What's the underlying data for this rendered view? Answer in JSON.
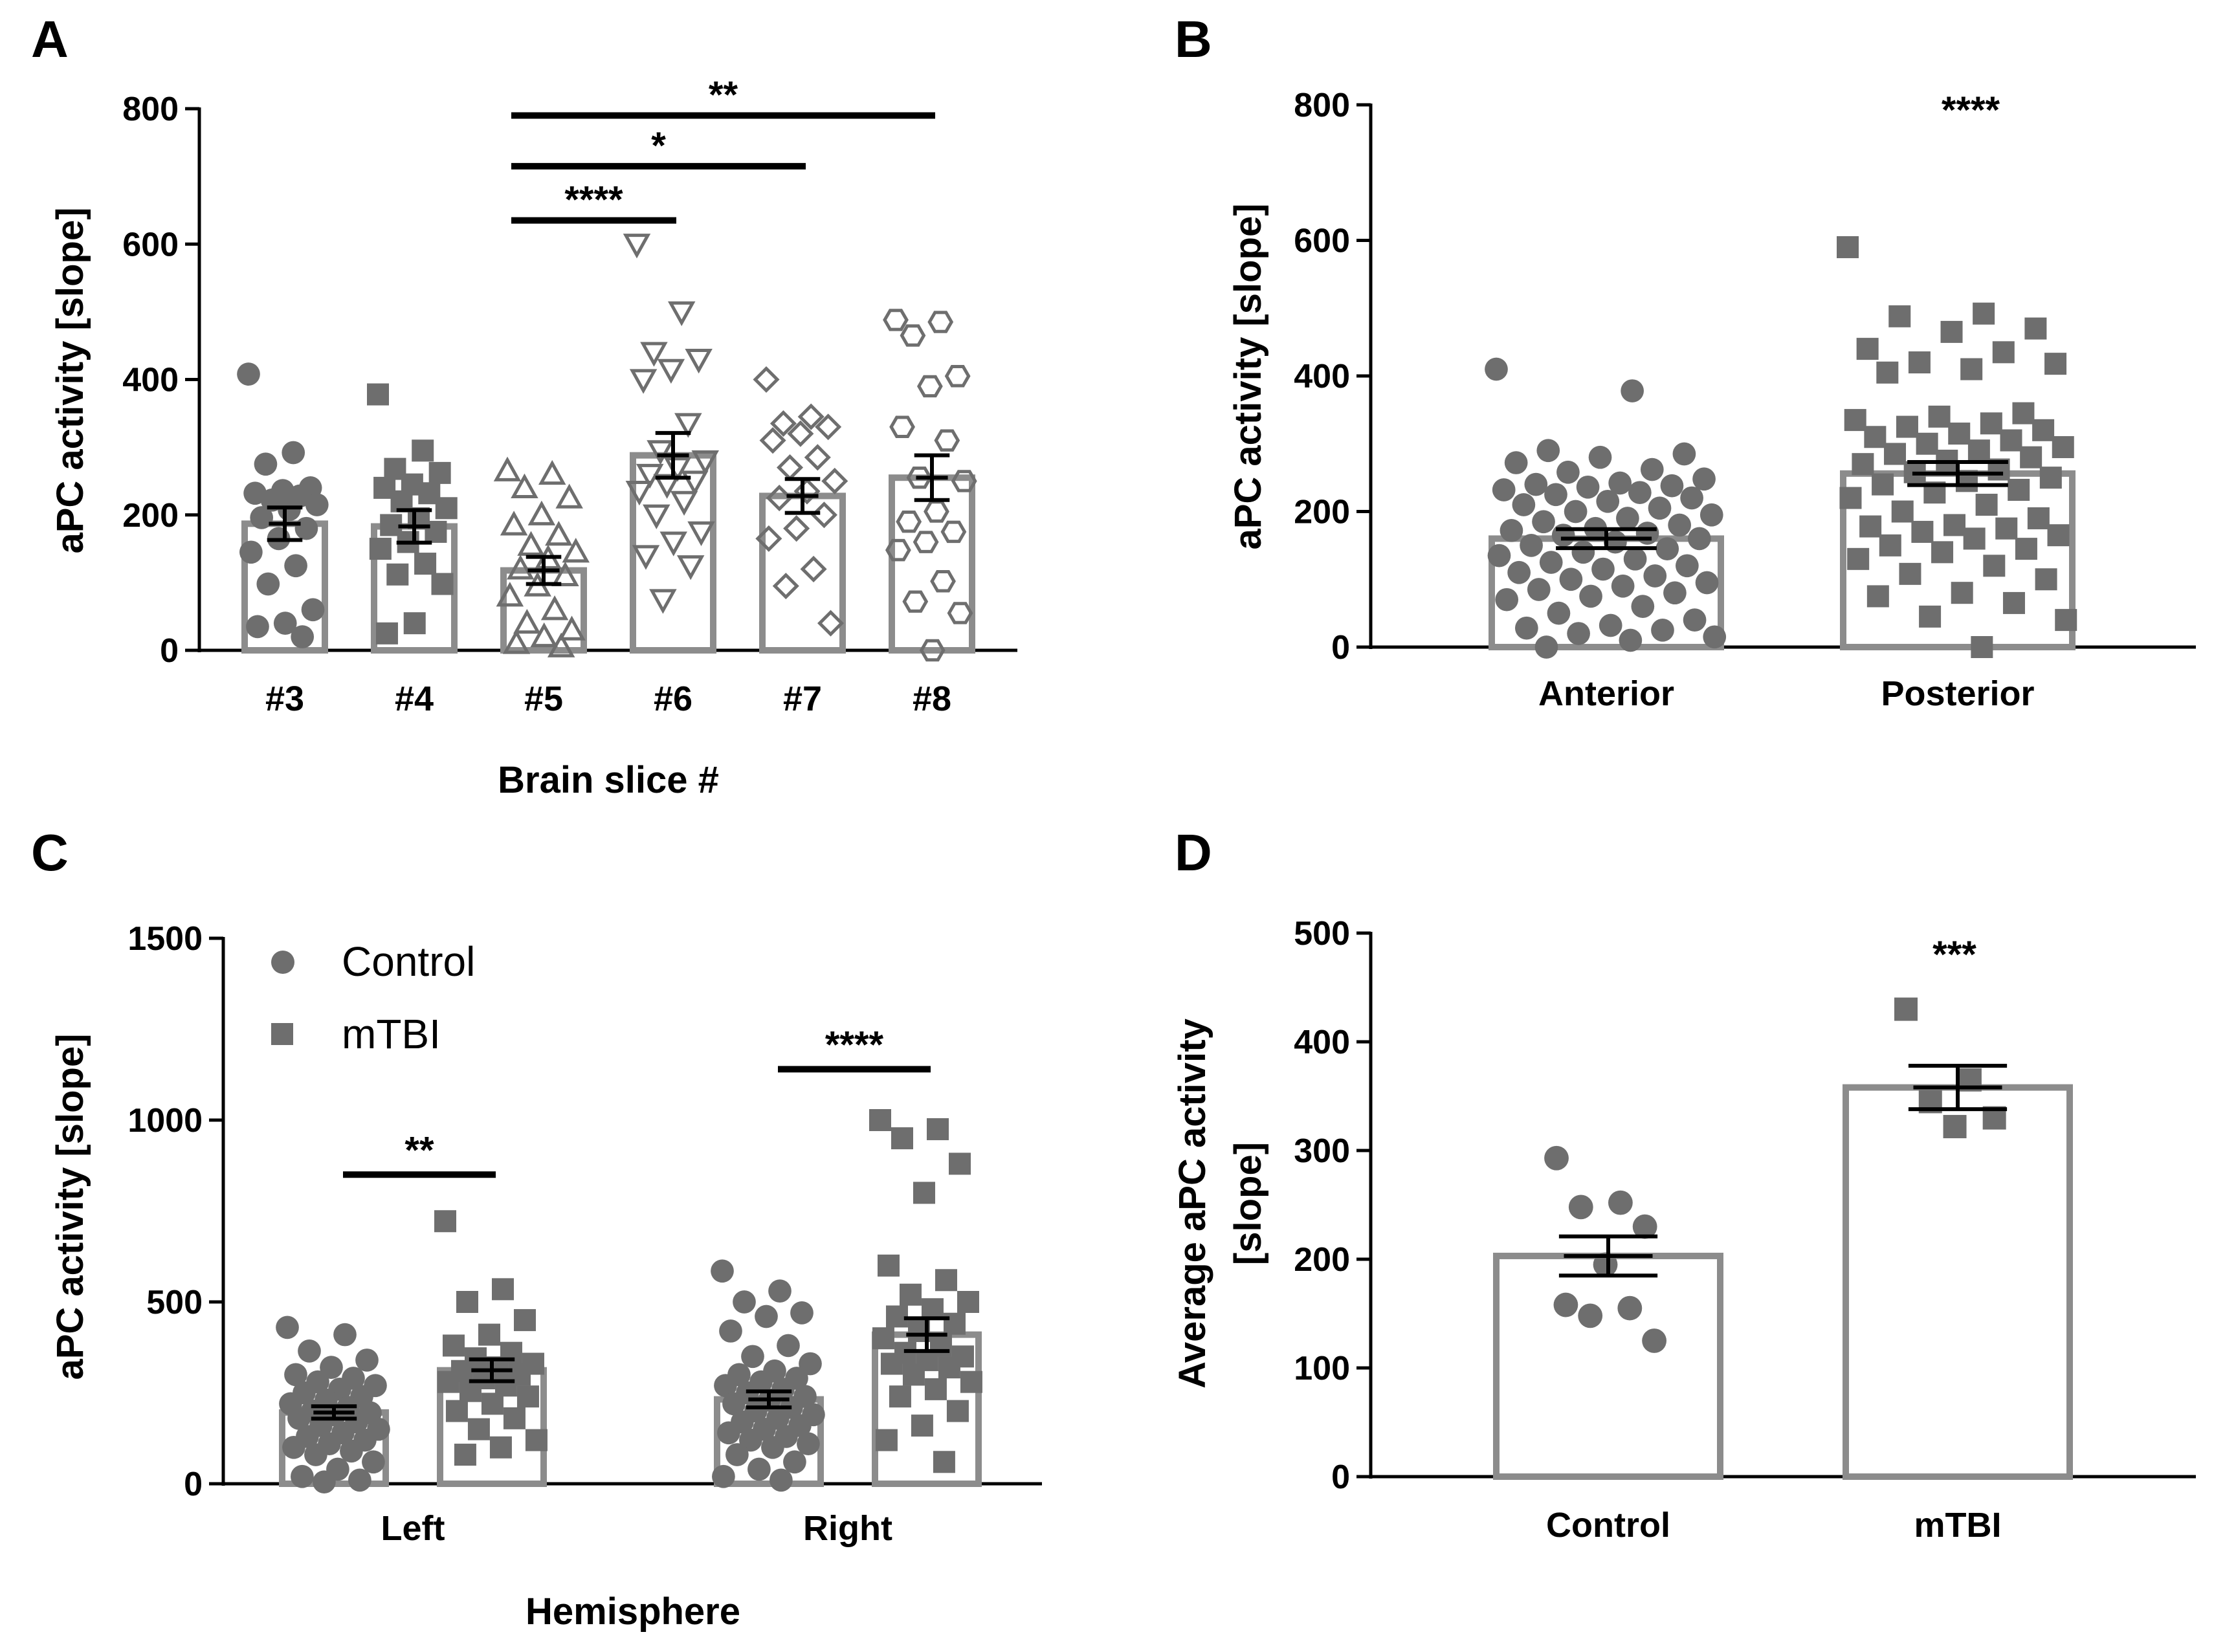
{
  "colors": {
    "bar_stroke": "#8c8c8c",
    "marker": "#6e6e6e",
    "axis": "#000000",
    "error": "#000000"
  },
  "chart_data": [
    {
      "panel": "A",
      "type": "bar",
      "xlabel": "Brain slice #",
      "ylabel": "aPC activity [slope]",
      "ylim": [
        0,
        800
      ],
      "yticks": [
        "0",
        "200",
        "400",
        "600",
        "800"
      ],
      "categories": [
        "#3",
        "#4",
        "#5",
        "#6",
        "#7",
        "#8"
      ],
      "markers": [
        "circle",
        "square",
        "triangle-up",
        "triangle-down",
        "diamond",
        "hexagon"
      ],
      "values": [
        187,
        183,
        118,
        288,
        228,
        255
      ],
      "sem": [
        24,
        24,
        20,
        33,
        25,
        33
      ],
      "points": [
        [
          408,
          292,
          275,
          240,
          236,
          232,
          228,
          222,
          215,
          208,
          196,
          180,
          165,
          145,
          125,
          98,
          60,
          40,
          35,
          20
        ],
        [
          378,
          295,
          268,
          262,
          245,
          240,
          232,
          220,
          210,
          195,
          185,
          175,
          160,
          150,
          128,
          112,
          98,
          40,
          25
        ],
        [
          265,
          260,
          240,
          225,
          200,
          185,
          170,
          155,
          145,
          135,
          120,
          110,
          95,
          80,
          60,
          40,
          30,
          20,
          10,
          5
        ],
        [
          600,
          500,
          440,
          430,
          415,
          400,
          335,
          295,
          280,
          270,
          260,
          250,
          245,
          235,
          220,
          200,
          175,
          160,
          140,
          125,
          75
        ],
        [
          400,
          345,
          335,
          330,
          320,
          310,
          285,
          270,
          250,
          235,
          225,
          200,
          180,
          165,
          120,
          95,
          40
        ],
        [
          488,
          485,
          465,
          405,
          390,
          330,
          310,
          255,
          250,
          205,
          190,
          175,
          160,
          148,
          102,
          72,
          55,
          0
        ]
      ],
      "significance": [
        {
          "label": "****",
          "from": "#5",
          "to": "#6",
          "y": 635
        },
        {
          "label": "*",
          "from": "#5",
          "to": "#7",
          "y": 715
        },
        {
          "label": "**",
          "from": "#5",
          "to": "#8",
          "y": 790
        }
      ]
    },
    {
      "panel": "B",
      "type": "bar",
      "xlabel": "",
      "ylabel": "aPC activity [slope]",
      "ylim": [
        0,
        800
      ],
      "yticks": [
        "0",
        "200",
        "400",
        "600",
        "800"
      ],
      "categories": [
        "Anterior",
        "Posterior"
      ],
      "markers": [
        "circle",
        "square"
      ],
      "values": [
        160,
        256
      ],
      "sem": [
        14,
        17
      ],
      "points": [
        [
          410,
          378,
          290,
          285,
          280,
          272,
          262,
          258,
          248,
          242,
          240,
          238,
          236,
          232,
          228,
          225,
          220,
          215,
          210,
          205,
          200,
          195,
          190,
          185,
          180,
          175,
          172,
          168,
          165,
          160,
          155,
          150,
          145,
          140,
          135,
          130,
          125,
          120,
          115,
          110,
          105,
          100,
          95,
          90,
          85,
          80,
          75,
          70,
          60,
          50,
          40,
          32,
          28,
          25,
          20,
          15,
          10,
          0
        ],
        [
          590,
          492,
          488,
          470,
          465,
          440,
          435,
          420,
          418,
          410,
          405,
          345,
          340,
          335,
          330,
          325,
          320,
          315,
          310,
          305,
          300,
          295,
          290,
          285,
          280,
          275,
          270,
          262,
          258,
          250,
          245,
          240,
          232,
          228,
          220,
          210,
          200,
          190,
          180,
          178,
          175,
          170,
          165,
          160,
          150,
          145,
          140,
          130,
          120,
          108,
          100,
          80,
          75,
          65,
          45,
          40,
          0
        ]
      ],
      "significance": [
        {
          "label": "****",
          "over": "Posterior"
        }
      ]
    },
    {
      "panel": "C",
      "type": "bar",
      "xlabel": "Hemisphere",
      "ylabel": "aPC activity [slope]",
      "ylim": [
        0,
        1500
      ],
      "yticks": [
        "0",
        "500",
        "1000",
        "1500"
      ],
      "categories": [
        "Left",
        "Right"
      ],
      "legend": {
        "position": "top-left",
        "entries": [
          {
            "name": "Control",
            "marker": "circle"
          },
          {
            "name": "mTBI",
            "marker": "square"
          }
        ]
      },
      "series": [
        {
          "name": "Control",
          "values": [
            196,
            232
          ],
          "sem": [
            17,
            22
          ],
          "points": [
            [
              430,
              410,
              365,
              340,
              320,
              300,
              290,
              280,
              270,
              260,
              250,
              240,
              230,
              220,
              210,
              200,
              195,
              190,
              180,
              170,
              160,
              150,
              140,
              130,
              120,
              110,
              100,
              90,
              80,
              60,
              40,
              20,
              10,
              5
            ],
            [
              585,
              530,
              500,
              470,
              460,
              420,
              380,
              350,
              330,
              310,
              300,
              290,
              280,
              270,
              260,
              250,
              240,
              230,
              220,
              210,
              200,
              190,
              180,
              170,
              160,
              150,
              140,
              130,
              120,
              110,
              100,
              80,
              60,
              40,
              20,
              10
            ]
          ]
        },
        {
          "name": "mTBI",
          "values": [
            312,
            410
          ],
          "sem": [
            30,
            45
          ],
          "points": [
            [
              722,
              535,
              500,
              450,
              410,
              380,
              360,
              345,
              330,
              320,
              310,
              300,
              290,
              280,
              270,
              255,
              240,
              220,
              200,
              180,
              150,
              120,
              100,
              80
            ],
            [
              1000,
              975,
              950,
              880,
              800,
              600,
              560,
              520,
              500,
              480,
              460,
              440,
              420,
              400,
              380,
              360,
              350,
              340,
              330,
              320,
              300,
              280,
              260,
              240,
              200,
              160,
              120,
              60
            ]
          ]
        }
      ],
      "significance": [
        {
          "label": "**",
          "group": "Left",
          "y": 850
        },
        {
          "label": "****",
          "group": "Right",
          "y": 1140
        }
      ]
    },
    {
      "panel": "D",
      "type": "bar",
      "xlabel": "",
      "ylabel": "Average aPC activity [slope]",
      "ylabel_lines": [
        "Average aPC activity",
        "[slope]"
      ],
      "ylim": [
        0,
        500
      ],
      "yticks": [
        "0",
        "100",
        "200",
        "300",
        "400",
        "500"
      ],
      "categories": [
        "Control",
        "mTBI"
      ],
      "markers": [
        "circle",
        "square"
      ],
      "values": [
        203,
        358
      ],
      "sem": [
        18,
        20
      ],
      "points": [
        [
          293,
          252,
          248,
          230,
          195,
          158,
          155,
          148,
          125
        ],
        [
          430,
          365,
          345,
          330,
          322
        ]
      ],
      "significance": [
        {
          "label": "***",
          "over": "mTBI"
        }
      ]
    }
  ]
}
